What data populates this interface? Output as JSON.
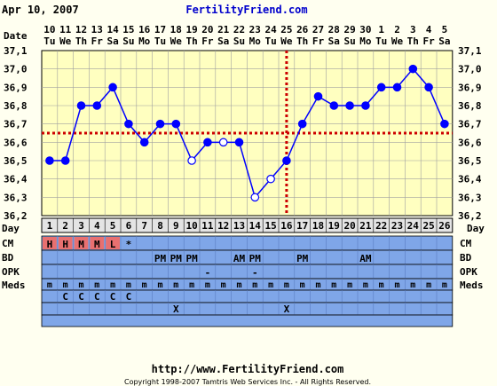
{
  "header": {
    "date": "Apr 10, 2007",
    "site": "FertilityFriend.com"
  },
  "footer": {
    "url": "http://www.FertilityFriend.com",
    "copyright": "Copyright 1998-2007 Tamtris Web Services Inc. - All Rights Reserved."
  },
  "row_labels": {
    "date": "Date",
    "day": "Day",
    "cm": "CM",
    "bd": "BD",
    "opk": "OPK",
    "meds": "Meds"
  },
  "colors": {
    "background": "#fffff0",
    "plot_bg": "#ffffc0",
    "grid": "#a0a0a0",
    "series": "#0000ff",
    "coverline": "#cc0000",
    "row_blue": "#7fa6e8",
    "cm_red": "#e87070",
    "day_row_bg": "#e4e4e4",
    "dark_band": "#a8bce0"
  },
  "chart_data": {
    "type": "line",
    "xlabel": "Day",
    "ylabel": "",
    "ylim": [
      36.2,
      37.1
    ],
    "grid": true,
    "y_ticks": [
      "36,2",
      "36,3",
      "36,4",
      "36,5",
      "36,6",
      "36,7",
      "36,8",
      "36,9",
      "37,0",
      "37,1"
    ],
    "day_numbers": [
      "1",
      "2",
      "3",
      "4",
      "5",
      "6",
      "7",
      "8",
      "9",
      "10",
      "11",
      "12",
      "13",
      "14",
      "15",
      "16",
      "17",
      "18",
      "19",
      "20",
      "21",
      "22",
      "23",
      "24",
      "25",
      "26"
    ],
    "date_numbers": [
      "10",
      "11",
      "12",
      "13",
      "14",
      "15",
      "16",
      "17",
      "18",
      "19",
      "20",
      "21",
      "22",
      "23",
      "24",
      "25",
      "26",
      "27",
      "28",
      "29",
      "30",
      "1",
      "2",
      "3",
      "4",
      "5"
    ],
    "weekdays": [
      "Tu",
      "We",
      "Th",
      "Fr",
      "Sa",
      "Su",
      "Mo",
      "Tu",
      "We",
      "Th",
      "Fr",
      "Sa",
      "Su",
      "Mo",
      "Tu",
      "We",
      "Th",
      "Fr",
      "Sa",
      "Su",
      "Mo",
      "Tu",
      "We",
      "Th",
      "Fr",
      "Sa"
    ],
    "series": [
      {
        "values": [
          36.5,
          36.5,
          36.8,
          36.8,
          36.9,
          36.7,
          36.6,
          36.7,
          36.7,
          36.5,
          36.6,
          36.6,
          36.6,
          36.3,
          36.4,
          36.5,
          36.7,
          36.85,
          36.8,
          36.8,
          36.8,
          36.9,
          36.9,
          37.0,
          36.9,
          36.7
        ],
        "open_markers": [
          10,
          12,
          14,
          15
        ]
      }
    ],
    "coverline": 36.65,
    "ovulation_day": 16
  },
  "rows": {
    "cm": [
      "H",
      "H",
      "M",
      "M",
      "L",
      "*",
      "",
      "",
      "",
      "",
      "",
      "",
      "",
      "",
      "",
      "",
      "",
      "",
      "",
      "",
      "",
      "",
      "",
      "",
      "",
      ""
    ],
    "bd": [
      "",
      "",
      "",
      "",
      "",
      "",
      "",
      "PM",
      "PM",
      "PM",
      "",
      "",
      "AM",
      "PM",
      "",
      "",
      "PM",
      "",
      "",
      "",
      "AM",
      "",
      "",
      "",
      "",
      ""
    ],
    "opk": [
      "",
      "",
      "",
      "",
      "",
      "",
      "",
      "",
      "",
      "",
      "-",
      "",
      "",
      "-",
      "",
      "",
      "",
      "",
      "",
      "",
      "",
      "",
      "",
      "",
      "",
      ""
    ],
    "meds": [
      "m",
      "m",
      "m",
      "m",
      "m",
      "m",
      "m",
      "m",
      "m",
      "m",
      "m",
      "m",
      "m",
      "m",
      "m",
      "m",
      "m",
      "m",
      "m",
      "m",
      "m",
      "m",
      "m",
      "m",
      "m",
      "m"
    ],
    "med2": [
      "",
      "C",
      "C",
      "C",
      "C",
      "C",
      "",
      "",
      "",
      "",
      "",
      "",
      "",
      "",
      "",
      "",
      "",
      "",
      "",
      "",
      "",
      "",
      "",
      "",
      "",
      ""
    ],
    "med3": [
      "",
      "",
      "",
      "",
      "",
      "",
      "",
      "",
      "X",
      "",
      "",
      "",
      "",
      "",
      "",
      "X",
      "",
      "",
      "",
      "",
      "",
      "",
      "",
      "",
      "",
      ""
    ]
  }
}
